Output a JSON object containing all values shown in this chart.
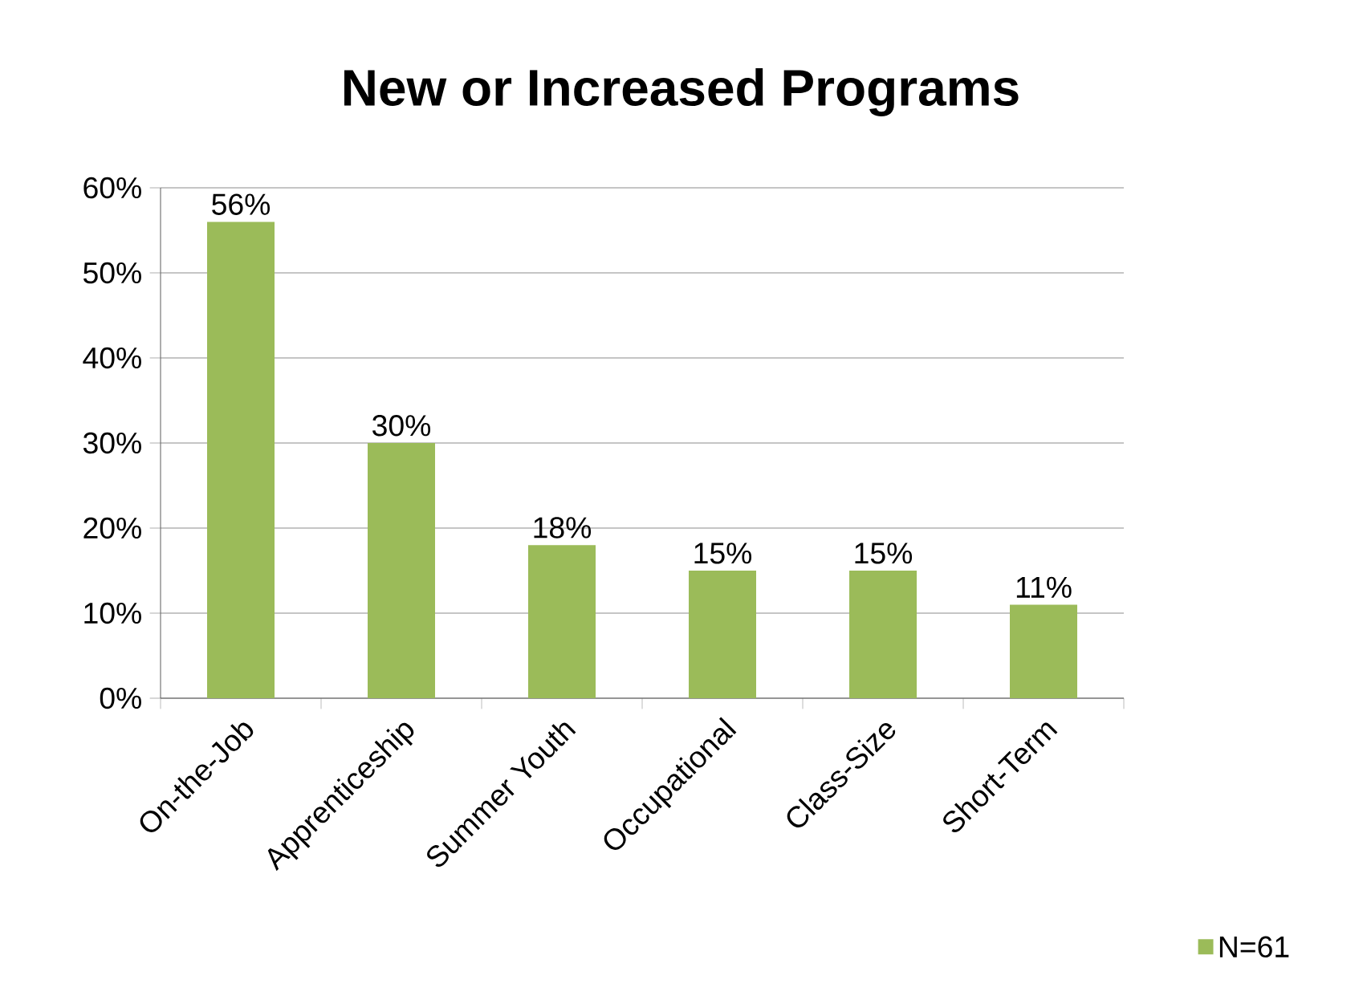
{
  "chart_data": {
    "type": "bar",
    "title": "New or Increased Programs",
    "categories": [
      "On-the-Job",
      "Apprenticeship",
      "Summer Youth",
      "Occupational",
      "Class-Size",
      "Short-Term"
    ],
    "series": [
      {
        "name": "N=61",
        "color": "#9bbb59",
        "values": [
          56,
          30,
          18,
          15,
          15,
          11
        ],
        "value_labels": [
          "56%",
          "30%",
          "18%",
          "15%",
          "15%",
          "11%"
        ]
      }
    ],
    "ylim": [
      0,
      60
    ],
    "yticks": [
      {
        "value": 0,
        "label": "0%"
      },
      {
        "value": 10,
        "label": "10%"
      },
      {
        "value": 20,
        "label": "20%"
      },
      {
        "value": 30,
        "label": "30%"
      },
      {
        "value": 40,
        "label": "40%"
      },
      {
        "value": 50,
        "label": "50%"
      },
      {
        "value": 60,
        "label": "60%"
      }
    ],
    "grid": "y",
    "legend": "bottom right"
  }
}
